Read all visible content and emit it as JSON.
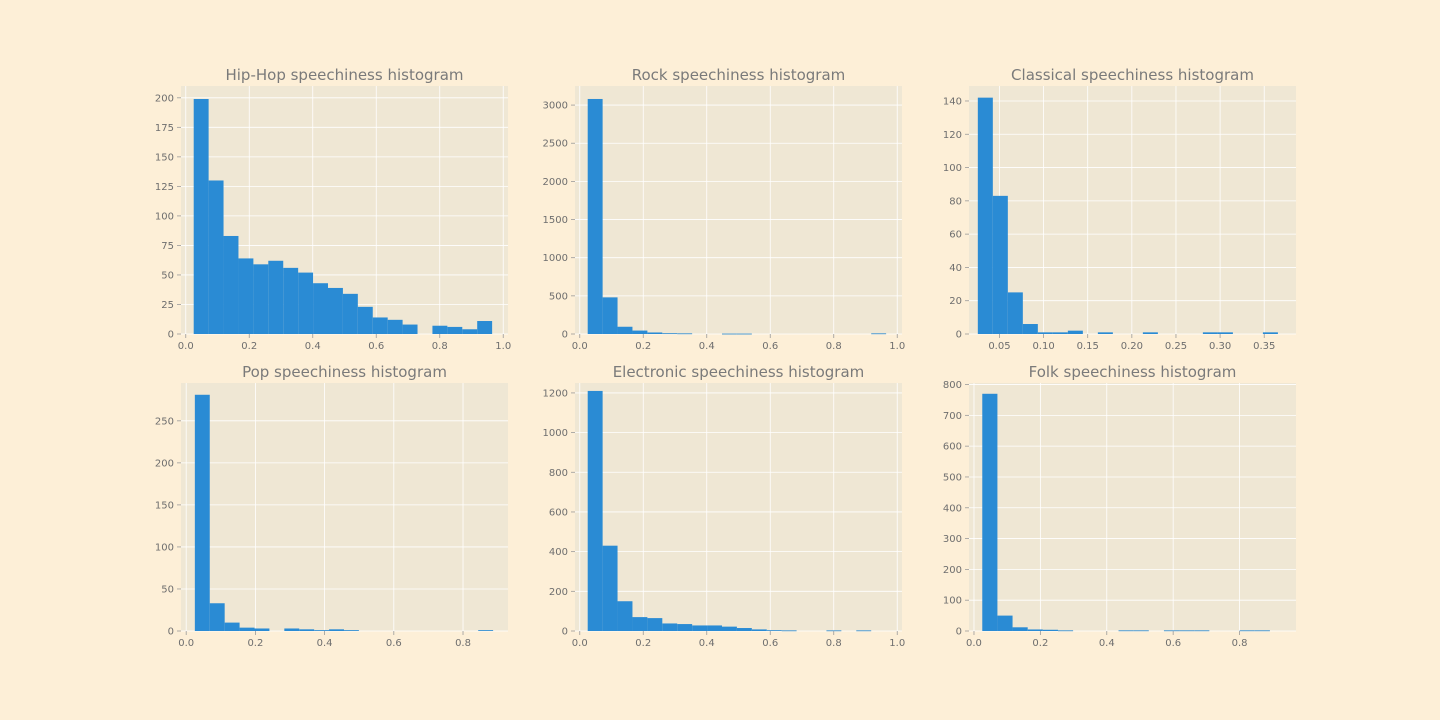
{
  "colors": {
    "figure_background": "#fdefd7",
    "plot_background": "#efe7d4",
    "bar": "#2a8bd4",
    "grid": "#ffffff",
    "text": "#7a7a7a"
  },
  "chart_data": [
    {
      "type": "bar",
      "title": "Hip-Hop speechiness histogram",
      "xlabel": "",
      "ylabel": "",
      "grid": true,
      "xlim": [
        -0.015,
        1.015
      ],
      "ylim": [
        0,
        210
      ],
      "xticks": [
        0.0,
        0.2,
        0.4,
        0.6,
        0.8,
        1.0
      ],
      "xtick_labels": [
        "0.0",
        "0.2",
        "0.4",
        "0.6",
        "0.8",
        "1.0"
      ],
      "yticks": [
        0,
        25,
        50,
        75,
        100,
        125,
        150,
        175,
        200
      ],
      "ytick_labels": [
        "0",
        "25",
        "50",
        "75",
        "100",
        "125",
        "150",
        "175",
        "200"
      ],
      "bin_start": 0.025,
      "bin_width": 0.047,
      "values": [
        199,
        130,
        83,
        64,
        59,
        62,
        56,
        52,
        43,
        39,
        34,
        23,
        14,
        12,
        8,
        0,
        7,
        6,
        4,
        11
      ]
    },
    {
      "type": "bar",
      "title": "Rock speechiness histogram",
      "xlabel": "",
      "ylabel": "",
      "grid": true,
      "xlim": [
        -0.015,
        1.015
      ],
      "ylim": [
        0,
        3250
      ],
      "xticks": [
        0.0,
        0.2,
        0.4,
        0.6,
        0.8,
        1.0
      ],
      "xtick_labels": [
        "0.0",
        "0.2",
        "0.4",
        "0.6",
        "0.8",
        "1.0"
      ],
      "yticks": [
        0,
        500,
        1000,
        1500,
        2000,
        2500,
        3000
      ],
      "ytick_labels": [
        "0",
        "500",
        "1000",
        "1500",
        "2000",
        "2500",
        "3000"
      ],
      "bin_start": 0.025,
      "bin_width": 0.047,
      "values": [
        3080,
        480,
        95,
        45,
        20,
        10,
        8,
        0,
        0,
        5,
        5,
        0,
        0,
        0,
        0,
        0,
        0,
        0,
        0,
        8
      ]
    },
    {
      "type": "bar",
      "title": "Classical speechiness histogram",
      "xlabel": "",
      "ylabel": "",
      "grid": true,
      "xlim": [
        0.0155,
        0.386
      ],
      "ylim": [
        0,
        149
      ],
      "xticks": [
        0.05,
        0.1,
        0.15,
        0.2,
        0.25,
        0.3,
        0.35
      ],
      "xtick_labels": [
        "0.05",
        "0.10",
        "0.15",
        "0.20",
        "0.25",
        "0.30",
        "0.35"
      ],
      "yticks": [
        0,
        20,
        40,
        60,
        80,
        100,
        120,
        140
      ],
      "ytick_labels": [
        "0",
        "20",
        "40",
        "60",
        "80",
        "100",
        "120",
        "140"
      ],
      "bin_start": 0.0255,
      "bin_width": 0.017,
      "values": [
        142,
        83,
        25,
        6,
        1,
        1,
        2,
        0,
        1,
        0,
        0,
        1,
        0,
        0,
        0,
        1,
        1,
        0,
        0,
        1
      ]
    },
    {
      "type": "bar",
      "title": "Pop speechiness histogram",
      "xlabel": "",
      "ylabel": "",
      "grid": true,
      "xlim": [
        -0.015,
        0.93
      ],
      "ylim": [
        0,
        295
      ],
      "xticks": [
        0.0,
        0.2,
        0.4,
        0.6,
        0.8
      ],
      "xtick_labels": [
        "0.0",
        "0.2",
        "0.4",
        "0.6",
        "0.8"
      ],
      "yticks": [
        0,
        50,
        100,
        150,
        200,
        250
      ],
      "ytick_labels": [
        "0",
        "50",
        "100",
        "150",
        "200",
        "250"
      ],
      "bin_start": 0.025,
      "bin_width": 0.0431,
      "values": [
        281,
        33,
        10,
        4,
        3,
        0,
        3,
        2,
        1,
        2,
        1,
        0,
        0,
        0,
        0,
        0,
        0,
        0,
        0,
        1
      ]
    },
    {
      "type": "bar",
      "title": "Electronic speechiness histogram",
      "xlabel": "",
      "ylabel": "",
      "grid": true,
      "xlim": [
        -0.015,
        1.015
      ],
      "ylim": [
        0,
        1250
      ],
      "xticks": [
        0.0,
        0.2,
        0.4,
        0.6,
        0.8,
        1.0
      ],
      "xtick_labels": [
        "0.0",
        "0.2",
        "0.4",
        "0.6",
        "0.8",
        "1.0"
      ],
      "yticks": [
        0,
        200,
        400,
        600,
        800,
        1000,
        1200
      ],
      "ytick_labels": [
        "0",
        "200",
        "400",
        "600",
        "800",
        "1000",
        "1200"
      ],
      "bin_start": 0.025,
      "bin_width": 0.047,
      "values": [
        1210,
        430,
        150,
        70,
        65,
        38,
        35,
        28,
        28,
        22,
        15,
        8,
        4,
        3,
        0,
        0,
        3,
        0,
        3,
        0
      ]
    },
    {
      "type": "bar",
      "title": "Folk speechiness histogram",
      "xlabel": "",
      "ylabel": "",
      "grid": true,
      "xlim": [
        -0.015,
        0.97
      ],
      "ylim": [
        0,
        805
      ],
      "xticks": [
        0.0,
        0.2,
        0.4,
        0.6,
        0.8
      ],
      "xtick_labels": [
        "0.0",
        "0.2",
        "0.4",
        "0.6",
        "0.8"
      ],
      "yticks": [
        0,
        100,
        200,
        300,
        400,
        500,
        600,
        700,
        800
      ],
      "ytick_labels": [
        "0",
        "100",
        "200",
        "300",
        "400",
        "500",
        "600",
        "700",
        "800"
      ],
      "bin_start": 0.025,
      "bin_width": 0.0456,
      "values": [
        770,
        50,
        12,
        5,
        4,
        2,
        0,
        0,
        0,
        2,
        2,
        0,
        2,
        2,
        2,
        0,
        0,
        2,
        2,
        0
      ]
    }
  ]
}
